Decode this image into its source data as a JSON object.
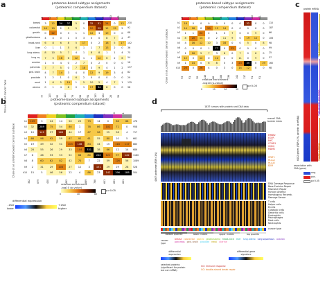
{
  "panel_a": {
    "letter": "a",
    "left_title": "proteome-based subtype assignments\n(proteomic compendium dataset)",
    "right_title": "proteome-based subtype assignments\n(proteomic compendium dataset)",
    "cols": [
      "s1",
      "s2",
      "s3",
      "s4",
      "s5",
      "s6",
      "s7",
      "s8",
      "s9",
      "s10",
      "s11"
    ],
    "n_label": "n",
    "row_axis_label": "tissue-based cancer type",
    "tissues": [
      "breast",
      "colorectal",
      "gastric",
      "glioblastoma",
      "head-neck",
      "liver",
      "lung adeno.",
      "lung sq.",
      "ovarian",
      "pancreas",
      "ped. brain",
      "prostate",
      "renal",
      "uterine"
    ],
    "left_counts": [
      [
        3,
        12,
        34,
        37,
        5,
        0,
        32,
        31,
        24,
        0,
        12
      ],
      [
        16,
        19,
        2,
        5,
        5,
        1,
        20,
        29,
        12,
        15,
        2
      ],
      [
        0,
        22,
        0,
        3,
        1,
        1,
        12,
        3,
        19,
        0,
        0
      ],
      [
        4,
        4,
        0,
        1,
        0,
        3,
        0,
        0,
        8,
        7,
        2
      ],
      [
        6,
        8,
        6,
        8,
        5,
        17,
        0,
        2,
        18,
        5,
        17
      ],
      [
        0,
        1,
        1,
        5,
        6,
        1,
        1,
        7,
        13,
        2,
        0
      ],
      [
        8,
        10,
        5,
        7,
        4,
        1,
        8,
        8,
        1,
        1,
        4
      ],
      [
        7,
        5,
        16,
        6,
        12,
        1,
        1,
        12,
        6,
        2,
        6
      ],
      [
        1,
        0,
        4,
        0,
        2,
        7,
        0,
        2,
        0,
        0,
        0
      ],
      [
        7,
        7,
        5,
        0,
        7,
        18,
        3,
        9,
        4,
        1,
        2
      ],
      [
        4,
        7,
        14,
        3,
        4,
        0,
        12,
        9,
        19,
        3,
        4
      ],
      [
        1,
        2,
        1,
        0,
        6,
        2,
        0,
        0,
        0,
        0,
        0
      ],
      [
        1,
        6,
        5,
        19,
        1,
        5,
        10,
        5,
        4,
        7,
        1
      ],
      [
        0,
        1,
        4,
        8,
        0,
        1,
        17,
        34,
        8,
        0,
        0
      ]
    ],
    "left_n": [
      230,
      92,
      68,
      43,
      102,
      36,
      75,
      54,
      16,
      137,
      82,
      29,
      135,
      98
    ],
    "left_col_n": [
      "77",
      "125",
      "92",
      "121",
      "79",
      "56",
      "91",
      "153",
      "134",
      "28",
      "91"
    ],
    "right_title_axis": "Chan et al. protein-based cancer subtype",
    "right_rows": [
      "k1",
      "k2",
      "k3",
      "k4",
      "k5",
      "k6",
      "k7",
      "k8",
      "k9",
      "k10"
    ],
    "right_counts": [
      [
        18,
        0,
        0,
        0,
        0,
        0,
        0,
        0,
        32,
        0,
        0
      ],
      [
        14,
        18,
        0,
        20,
        12,
        14,
        0,
        0,
        0,
        0,
        0
      ],
      [
        1,
        1,
        22,
        2,
        1,
        0,
        7,
        0,
        0,
        9,
        0
      ],
      [
        8,
        20,
        14,
        0,
        2,
        11,
        9,
        0,
        19,
        12,
        0
      ],
      [
        4,
        16,
        12,
        10,
        3,
        16,
        0,
        0,
        5,
        0,
        8
      ],
      [
        0,
        0,
        0,
        1,
        77,
        0,
        22,
        0,
        0,
        0,
        0
      ],
      [
        1,
        16,
        5,
        7,
        3,
        8,
        0,
        7,
        0,
        6,
        0
      ],
      [
        12,
        0,
        12,
        0,
        12,
        0,
        0,
        11,
        0,
        9,
        0
      ],
      [
        1,
        14,
        0,
        6,
        8,
        0,
        3,
        23,
        35,
        0,
        19
      ],
      [
        20,
        0,
        26,
        4,
        0,
        3,
        0,
        14,
        12,
        0,
        0
      ]
    ],
    "right_n": [
      110,
      187,
      66,
      106,
      98,
      99,
      25,
      57,
      160,
      98
    ],
    "right_col_n": [
      "93",
      "91",
      "50",
      "118",
      "66",
      "106",
      "136",
      "141",
      "117",
      "91",
      "91"
    ],
    "legend_title": "relative enrichment\n-log10 (p-value)",
    "legend_ticks": [
      "0",
      "10",
      "20",
      "30"
    ],
    "legend_ns": "p>0.05"
  },
  "panel_b": {
    "letter": "b",
    "title": "proteome-based subtype assignments\n(proteomic compendium dataset)",
    "cols": [
      "s1",
      "s2",
      "s3",
      "s4",
      "s5",
      "s6",
      "s7",
      "s8",
      "s9",
      "s10",
      "s11"
    ],
    "n_label": "n",
    "row_axis_label": "Chan et al. protein-based cancer subtype",
    "rows": [
      "k1",
      "k2",
      "k3",
      "k4",
      "k5",
      "k6",
      "k7",
      "k8",
      "k9",
      "k10"
    ],
    "counts": [
      [
        129,
        3,
        24,
        14,
        50,
        25,
        73,
        14,
        0,
        86,
        68
      ],
      [
        32,
        289,
        75,
        54,
        80,
        1,
        78,
        86,
        102,
        71,
        0
      ],
      [
        10,
        142,
        57,
        163,
        44,
        17,
        67,
        96,
        25,
        58,
        4
      ],
      [
        66,
        96,
        92,
        59,
        67,
        92,
        61,
        55,
        80,
        10,
        5
      ],
      [
        19,
        49,
        32,
        51,
        103,
        146,
        84,
        44,
        15,
        118,
        117
      ],
      [
        28,
        55,
        26,
        29,
        33,
        104,
        331,
        38,
        66,
        12,
        14
      ],
      [
        6,
        46,
        53,
        53,
        52,
        68,
        80,
        240,
        121,
        97,
        142
      ],
      [
        8,
        60,
        62,
        82,
        42,
        70,
        7,
        22,
        59,
        126,
        56
      ],
      [
        2,
        31,
        29,
        103,
        27,
        12,
        3,
        151,
        29,
        19,
        28
      ],
      [
        15,
        5,
        46,
        56,
        22,
        4,
        86,
        23,
        142,
        196,
        188
      ]
    ],
    "row_n": [
      476,
      958,
      717,
      661,
      880,
      686,
      1180,
      1089,
      528,
      504
    ],
    "col_n": [
      "302",
      "879",
      "450",
      "720",
      "482",
      "513",
      "869",
      "768",
      "641",
      "691",
      "621"
    ],
    "legend_title": "relative enrichment\n-log10 (p-value)",
    "legend_ticks": [
      "0",
      "40",
      "80"
    ],
    "legend_ns": "p>0.05"
  },
  "diff_legend": {
    "title": "differential expression",
    "left_label": "-1SD\nlower",
    "right_label": "+1SD\nhigher"
  },
  "panel_c": {
    "letter": "c",
    "rot_label": "6402 genes (FDR<1%, protein vs mRNA)",
    "side_labels": [
      "up in protein",
      "both protein and mRNA",
      "protein & mRNA"
    ],
    "header_left": "protein",
    "header_right": "mRNA",
    "assoc_title": "association with\nCNA (gene)",
    "assoc_labels": [
      "neg.",
      "pos.",
      "p>0.05"
    ]
  },
  "panel_d": {
    "letter": "d",
    "top_label": "1837 tumors with protein and CNA data",
    "cna_label": "overall CNA\nburden index",
    "gene_block_label": "4867 proteome (FDR<1%)",
    "genes_right_a": [
      "ERBB2",
      "EGFR",
      "MYC",
      "CCND1",
      "CDK4",
      "MDM2"
    ],
    "genes_right_b": [
      "STAT1",
      "HLA-A",
      "HLA-B",
      "B2M"
    ],
    "pathway_labels": [
      "DNA Damage Response",
      "Base Excision Repair",
      "Mismatch Repair",
      "Fanconi Anemia",
      "Homologous Recomb.",
      "Damage Sensor"
    ],
    "immune_labels": [
      "T cells",
      "Helper cells",
      "B cells",
      "Cytotoxic cells",
      "Dendritic cells",
      "Eosinophils",
      "Macrophages",
      "Mast cells",
      "Neutrophils"
    ],
    "cancer_type_label": "cancer type",
    "quartile_labels": [
      "bottom quartile",
      "lower middle",
      "upper middle",
      "top quartile"
    ],
    "cancer_types": [
      "breast",
      "colorectal",
      "gastric",
      "glioblastoma",
      "head-neck",
      "liver",
      "lung adeno",
      "lung squamous",
      "ovarian",
      "pancreas",
      "ped. brain",
      "prostate",
      "renal",
      "uterine"
    ],
    "legend_diff_left": "differential\nexpression",
    "legend_diff_right": "differential gene\nsignature",
    "selected_label": "selected proteins\n(significant for protein\nbut not mRNA)",
    "selected_items": [
      "GO: immune response",
      "GO: double-strand break repair"
    ]
  },
  "colors": {
    "enrich_low": "#ffffc0",
    "enrich_mid": "#f0a020",
    "enrich_high": "#000000",
    "blue": "#3a6fd8",
    "red": "#e02020",
    "green": "#40b040"
  }
}
